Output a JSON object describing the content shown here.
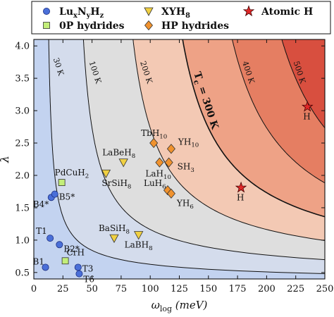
{
  "chart_data": {
    "type": "scatter",
    "xlabel": "ω_log (meV)",
    "ylabel": "λ",
    "xlim": [
      0,
      250
    ],
    "ylim": [
      0.4,
      4.1
    ],
    "x_ticks": [
      0,
      25,
      50,
      75,
      100,
      125,
      150,
      175,
      200,
      225,
      250
    ],
    "y_ticks": [
      0.5,
      1.0,
      1.5,
      2.0,
      2.5,
      3.0,
      3.5,
      4.0
    ],
    "grid": false,
    "legend_position": "top",
    "background_regions": [
      {
        "tc_range": [
          0,
          30
        ],
        "color": "#c3d3f0"
      },
      {
        "tc_range": [
          30,
          100
        ],
        "color": "#d4dcec"
      },
      {
        "tc_range": [
          100,
          200
        ],
        "color": "#dedede"
      },
      {
        "tc_range": [
          200,
          300
        ],
        "color": "#f3c9b4"
      },
      {
        "tc_range": [
          300,
          400
        ],
        "color": "#eea286"
      },
      {
        "tc_range": [
          400,
          500
        ],
        "color": "#e57e62"
      },
      {
        "tc_range": [
          500,
          2000
        ],
        "color": "#d84f3f"
      }
    ],
    "contours": [
      {
        "tc": 30,
        "label": "30 K",
        "bold": false
      },
      {
        "tc": 100,
        "label": "100 K",
        "bold": false
      },
      {
        "tc": 200,
        "label": "200 K",
        "bold": false
      },
      {
        "tc": 300,
        "label": "T_c = 300 K",
        "bold": true
      },
      {
        "tc": 400,
        "label": "400 K",
        "bold": false
      },
      {
        "tc": 500,
        "label": "500 K",
        "bold": false
      }
    ],
    "series": [
      {
        "name": "Lu_xN_yH_z",
        "marker": "circle",
        "color": "#4a6fd8",
        "points": [
          {
            "label": "B1",
            "x": 10,
            "y": 0.58
          },
          {
            "label": "T1",
            "x": 14,
            "y": 1.03
          },
          {
            "label": "B4*",
            "x": 15,
            "y": 1.66
          },
          {
            "label": "B5*",
            "x": 18,
            "y": 1.71
          },
          {
            "label": "B2*",
            "x": 22,
            "y": 0.93
          },
          {
            "label": "T3",
            "x": 38,
            "y": 0.58
          },
          {
            "label": "T6",
            "x": 39,
            "y": 0.48
          }
        ]
      },
      {
        "name": "0P hydrides",
        "marker": "square",
        "color": "#c3ee7a",
        "points": [
          {
            "label": "PdCuH_2",
            "x": 24,
            "y": 1.89
          },
          {
            "label": "CrH",
            "x": 27,
            "y": 0.68
          }
        ]
      },
      {
        "name": "XYH_8",
        "marker": "triangle",
        "color": "#f0d042",
        "points": [
          {
            "label": "SrSiH_8",
            "x": 62,
            "y": 2.03
          },
          {
            "label": "BaSiH_8",
            "x": 69,
            "y": 1.03
          },
          {
            "label": "LaBeH_8",
            "x": 77,
            "y": 2.2
          },
          {
            "label": "LaBH_8",
            "x": 90,
            "y": 1.08
          }
        ]
      },
      {
        "name": "HP hydrides",
        "marker": "diamond",
        "color": "#f0922e",
        "points": [
          {
            "label": "TbH_10",
            "x": 103,
            "y": 2.5
          },
          {
            "label": "LaH_10",
            "x": 108,
            "y": 2.2
          },
          {
            "label": "LuH_6",
            "x": 115,
            "y": 1.77
          },
          {
            "label": "SH_3",
            "x": 116,
            "y": 2.2
          },
          {
            "label": "YH_6",
            "x": 118,
            "y": 1.72
          },
          {
            "label": "YH_10",
            "x": 118,
            "y": 2.41
          }
        ]
      },
      {
        "name": "Atomic H",
        "marker": "star",
        "color": "#e02828",
        "points": [
          {
            "label": "H",
            "x": 178,
            "y": 1.81
          },
          {
            "label": "H",
            "x": 235,
            "y": 3.06
          }
        ]
      }
    ]
  }
}
